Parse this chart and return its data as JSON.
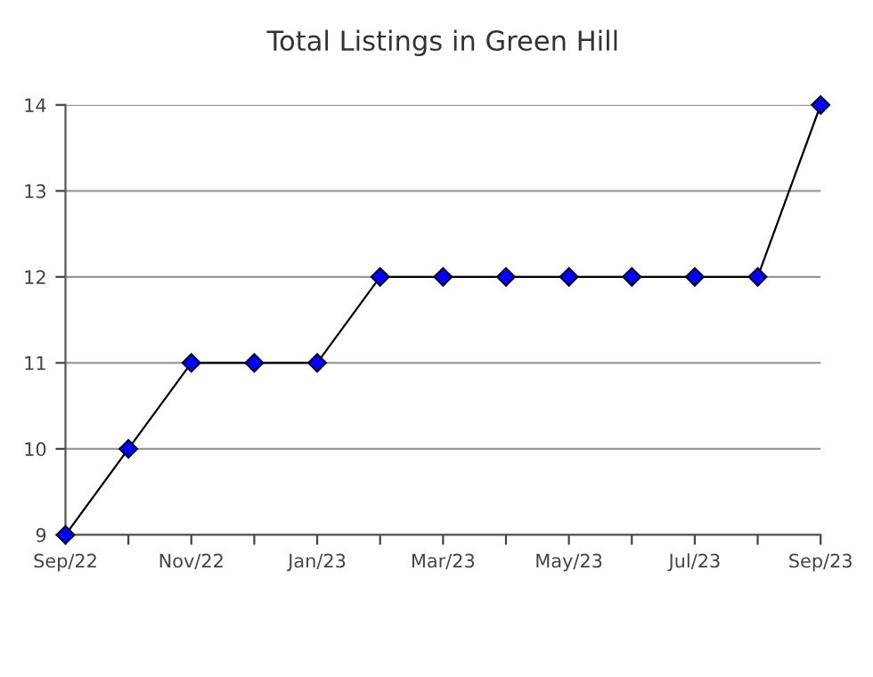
{
  "chart_data": {
    "type": "line",
    "title": "Total Listings in Green Hill",
    "categories": [
      "Sep/22",
      null,
      "Nov/22",
      null,
      "Jan/23",
      null,
      "Mar/23",
      null,
      "May/23",
      null,
      "Jul/23",
      null,
      "Sep/23"
    ],
    "series": [
      {
        "color": "#0000ff",
        "values": [
          9,
          10,
          11,
          11,
          11,
          12,
          12,
          12,
          12,
          12,
          12,
          12,
          14
        ]
      }
    ],
    "ylim": [
      9,
      14
    ],
    "yticks": [
      9,
      10,
      11,
      12,
      13,
      14
    ],
    "grid": "y",
    "marker": "diamond",
    "line_style": "solid"
  }
}
